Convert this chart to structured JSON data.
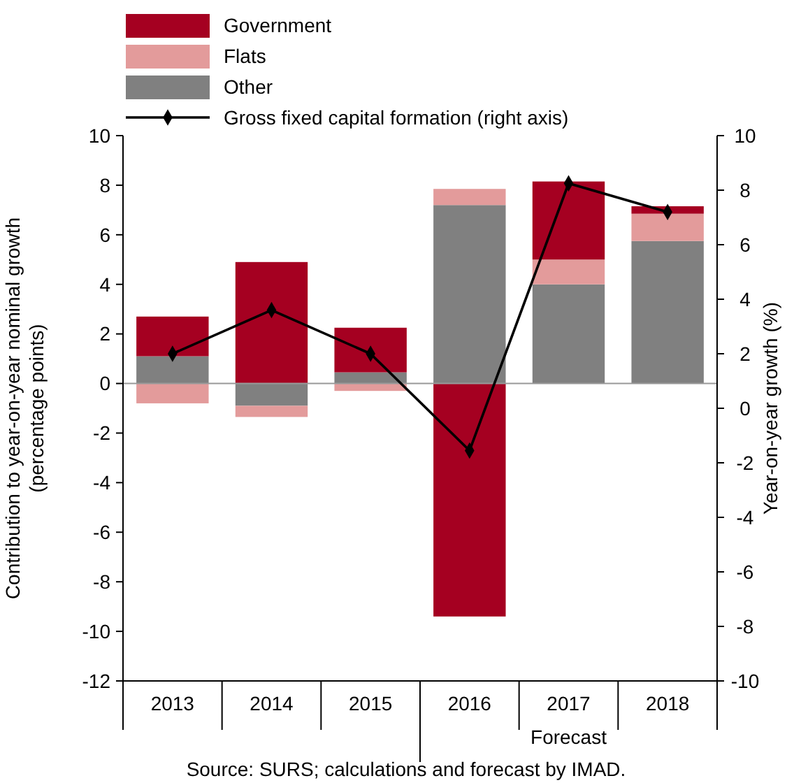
{
  "chart_data": {
    "type": "bar",
    "stacked": true,
    "categories": [
      "2013",
      "2014",
      "2015",
      "2016",
      "2017",
      "2018"
    ],
    "series": [
      {
        "name": "Other",
        "color": "#808080",
        "values": [
          1.1,
          -0.9,
          0.45,
          7.2,
          4.0,
          5.75
        ]
      },
      {
        "name": "Flats",
        "color": "#e39b9b",
        "values": [
          -0.8,
          -0.45,
          -0.3,
          0.65,
          1.0,
          1.1
        ]
      },
      {
        "name": "Government",
        "color": "#a50021",
        "values": [
          1.6,
          4.9,
          1.8,
          -9.4,
          3.15,
          0.3
        ]
      },
      {
        "name": "Gross fixed capital formation (right axis)",
        "type": "line",
        "axis": "y2",
        "color": "#000000",
        "marker": "diamond",
        "values": [
          2.0,
          3.6,
          2.0,
          -1.55,
          8.25,
          7.2
        ]
      }
    ],
    "ylim": [
      -12,
      10
    ],
    "yticks": [
      -12,
      -10,
      -8,
      -6,
      -4,
      -2,
      0,
      2,
      4,
      6,
      8,
      10
    ],
    "y2lim": [
      -10,
      10
    ],
    "y2ticks": [
      -10,
      -8,
      -6,
      -4,
      -2,
      0,
      2,
      4,
      6,
      8,
      10
    ],
    "ylabel": "Contribution to year-on-year nominal growth (percentage points)",
    "y2label": "Year-on-year growth (%)",
    "legend": "top left",
    "ref_lines": [
      {
        "axis": "y",
        "value": 0,
        "color": "#999999"
      }
    ],
    "annotations": [
      "Forecast",
      "Source: SURS; calculations and forecast by IMAD."
    ]
  }
}
